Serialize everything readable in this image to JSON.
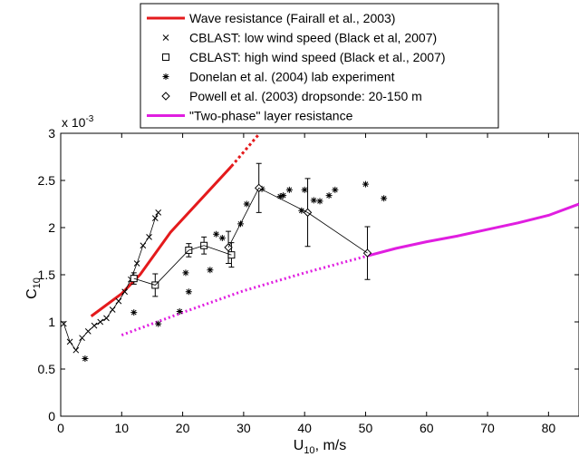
{
  "chart_data": {
    "type": "line",
    "xlabel": "U",
    "xlabel_sub": "10",
    "xlabel_unit": ", m/s",
    "ylabel": "C",
    "ylabel_sub": "10",
    "y_multiplier": "x 10",
    "y_multiplier_exp": "-3",
    "xlim": [
      0,
      85
    ],
    "ylim": [
      0,
      3
    ],
    "xticks": [
      0,
      10,
      20,
      30,
      40,
      50,
      60,
      70,
      80
    ],
    "yticks": [
      0,
      0.5,
      1,
      1.5,
      2,
      2.5,
      3
    ],
    "x_tick_labels": [
      "0",
      "10",
      "20",
      "30",
      "40",
      "50",
      "60",
      "70",
      "80"
    ],
    "y_tick_labels": [
      "0",
      "0.5",
      "1",
      "1.5",
      "2",
      "2.5",
      "3"
    ],
    "grid": false,
    "legend_position": "top",
    "colors": {
      "wave": "#e41a1c",
      "two_phase": "#e01ee0",
      "markers": "#000000"
    },
    "series": [
      {
        "name": "Wave resistance (Fairall et al., 2003)",
        "style": "thick-line",
        "x": [
          5,
          10,
          13,
          18,
          28
        ],
        "y": [
          1.06,
          1.3,
          1.5,
          1.95,
          2.65
        ]
      },
      {
        "name": "",
        "style": "thick-dotted",
        "x": [
          28,
          32.5
        ],
        "y": [
          2.65,
          2.99
        ]
      },
      {
        "name": "CBLAST: low wind speed (Black et al, 2007)",
        "style": "x-line",
        "x": [
          0.5,
          1.5,
          2.5,
          3.5,
          4.5,
          5.5,
          6.5,
          7.5,
          8.5,
          9.5,
          10.5,
          11.5,
          12.5,
          13.5,
          14.5,
          15.5,
          16
        ],
        "y": [
          0.98,
          0.79,
          0.7,
          0.83,
          0.9,
          0.96,
          1.0,
          1.04,
          1.13,
          1.22,
          1.32,
          1.45,
          1.62,
          1.81,
          1.9,
          2.1,
          2.16
        ]
      },
      {
        "name": "CBLAST: high wind speed (Black et al., 2007)",
        "style": "square-line-errorbar",
        "x": [
          12,
          15.5,
          21,
          23.5,
          28
        ],
        "y": [
          1.46,
          1.39,
          1.76,
          1.81,
          1.71
        ],
        "err": [
          0.06,
          0.12,
          0.07,
          0.09,
          0.13
        ]
      },
      {
        "name": "Donelan et al. (2004) lab experiment",
        "style": "asterisk",
        "x": [
          4,
          12,
          16,
          19.5,
          20.5,
          21,
          24.5,
          25.5,
          26.5,
          29.5,
          30.5,
          33,
          36,
          36.5,
          37.5,
          39.5,
          40,
          41.5,
          42.5,
          44,
          45,
          50,
          53
        ],
        "y": [
          0.61,
          1.1,
          0.98,
          1.11,
          1.52,
          1.32,
          1.55,
          1.93,
          1.89,
          2.04,
          2.25,
          2.41,
          2.33,
          2.34,
          2.4,
          2.18,
          2.4,
          2.29,
          2.28,
          2.34,
          2.4,
          2.46,
          2.31
        ]
      },
      {
        "name": "Powell et al. (2003) dropsonde: 20-150 m",
        "style": "diamond-line-errorbar",
        "x": [
          27.5,
          32.5,
          40.5,
          50.3
        ],
        "y": [
          1.79,
          2.42,
          2.16,
          1.73
        ],
        "err": [
          0.17,
          0.26,
          0.36,
          0.28
        ]
      },
      {
        "name": "\"Two-phase\" layer resistance",
        "style": "thick-line",
        "x": [
          50.3,
          55,
          60,
          65,
          70,
          75,
          80,
          85
        ],
        "y": [
          1.7,
          1.78,
          1.85,
          1.91,
          1.98,
          2.05,
          2.13,
          2.25
        ]
      },
      {
        "name": "",
        "style": "thick-dotted",
        "x": [
          10,
          20,
          30,
          40,
          50.3
        ],
        "y": [
          0.86,
          1.1,
          1.33,
          1.52,
          1.7
        ]
      }
    ]
  }
}
